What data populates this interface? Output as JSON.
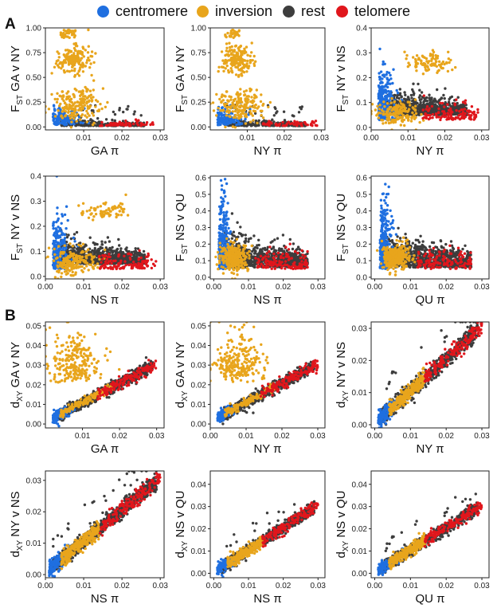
{
  "legend": {
    "items": [
      {
        "label": "centromere",
        "color": "#1f6fe0"
      },
      {
        "label": "inversion",
        "color": "#e8a51c"
      },
      {
        "label": "rest",
        "color": "#3d3d3d"
      },
      {
        "label": "telomere",
        "color": "#e0161c"
      }
    ]
  },
  "panel_letters": {
    "a": "A",
    "b": "B"
  },
  "chart_data": [
    {
      "type": "scatter",
      "panel": "A",
      "row": 0,
      "col": 0,
      "stat": "F",
      "sub": "ST",
      "pair": "GA v NY",
      "xlabel": "GA π",
      "xlim": [
        0,
        0.031
      ],
      "ylim": [
        -0.03,
        1.0
      ],
      "xticks": [
        0.01,
        0.02,
        0.03
      ],
      "yticks": [
        0.0,
        0.25,
        0.5,
        0.75,
        1.0
      ],
      "ytick_labels": [
        "0.00",
        "0.25",
        "0.50",
        "0.75",
        "1.00"
      ],
      "profile": "fstA",
      "series_counts": {
        "centromere": 140,
        "inversion": 400,
        "rest": 300,
        "telomere": 60
      }
    },
    {
      "type": "scatter",
      "panel": "A",
      "row": 0,
      "col": 1,
      "stat": "F",
      "sub": "ST",
      "pair": "GA v NY",
      "xlabel": "NY π",
      "xlim": [
        0,
        0.031
      ],
      "ylim": [
        -0.03,
        1.0
      ],
      "xticks": [
        0.01,
        0.02,
        0.03
      ],
      "yticks": [
        0.0,
        0.25,
        0.5,
        0.75,
        1.0
      ],
      "ytick_labels": [
        "0.00",
        "0.25",
        "0.50",
        "0.75",
        "1.00"
      ],
      "profile": "fstB",
      "series_counts": {
        "centromere": 140,
        "inversion": 400,
        "rest": 300,
        "telomere": 60
      }
    },
    {
      "type": "scatter",
      "panel": "A",
      "row": 0,
      "col": 2,
      "stat": "F",
      "sub": "ST",
      "pair": "NY v NS",
      "xlabel": "NY π",
      "xlim": [
        0,
        0.032
      ],
      "ylim": [
        -0.01,
        0.4
      ],
      "xticks": [
        0.0,
        0.01,
        0.02,
        0.03
      ],
      "yticks": [
        0.0,
        0.1,
        0.2,
        0.3,
        0.4
      ],
      "ytick_labels": [
        "0.0",
        "0.1",
        "0.2",
        "0.3",
        "0.4"
      ],
      "profile": "fstC",
      "series_counts": {
        "centromere": 250,
        "inversion": 280,
        "rest": 800,
        "telomere": 120
      }
    },
    {
      "type": "scatter",
      "panel": "A",
      "row": 1,
      "col": 0,
      "stat": "F",
      "sub": "ST",
      "pair": "NY v NS",
      "xlabel": "NS π",
      "xlim": [
        0,
        0.031
      ],
      "ylim": [
        -0.01,
        0.4
      ],
      "xticks": [
        0.0,
        0.01,
        0.02,
        0.03
      ],
      "yticks": [
        0.0,
        0.1,
        0.2,
        0.3,
        0.4
      ],
      "ytick_labels": [
        "0.0",
        "0.1",
        "0.2",
        "0.3",
        "0.4"
      ],
      "profile": "fstD",
      "series_counts": {
        "centromere": 250,
        "inversion": 280,
        "rest": 800,
        "telomere": 120
      }
    },
    {
      "type": "scatter",
      "panel": "A",
      "row": 1,
      "col": 1,
      "stat": "F",
      "sub": "ST",
      "pair": "NS v QU",
      "xlabel": "NS π",
      "xlim": [
        -0.001,
        0.032
      ],
      "ylim": [
        -0.01,
        0.61
      ],
      "xticks": [
        0.0,
        0.01,
        0.02,
        0.03
      ],
      "yticks": [
        0.0,
        0.1,
        0.2,
        0.3,
        0.4,
        0.5,
        0.6
      ],
      "ytick_labels": [
        "0.0",
        "0.1",
        "0.2",
        "0.3",
        "0.4",
        "0.5",
        "0.6"
      ],
      "profile": "fstE",
      "series_counts": {
        "centromere": 300,
        "inversion": 300,
        "rest": 900,
        "telomere": 130
      }
    },
    {
      "type": "scatter",
      "panel": "A",
      "row": 1,
      "col": 2,
      "stat": "F",
      "sub": "ST",
      "pair": "NS v QU",
      "xlabel": "QU π",
      "xlim": [
        -0.001,
        0.032
      ],
      "ylim": [
        -0.01,
        0.61
      ],
      "xticks": [
        0.0,
        0.01,
        0.02,
        0.03
      ],
      "yticks": [
        0.0,
        0.1,
        0.2,
        0.3,
        0.4,
        0.5,
        0.6
      ],
      "ytick_labels": [
        "0.0",
        "0.1",
        "0.2",
        "0.3",
        "0.4",
        "0.5",
        "0.6"
      ],
      "profile": "fstF",
      "series_counts": {
        "centromere": 300,
        "inversion": 300,
        "rest": 900,
        "telomere": 130
      }
    },
    {
      "type": "scatter",
      "panel": "B",
      "row": 2,
      "col": 0,
      "stat": "d",
      "sub": "XY",
      "pair": "GA v NY",
      "xlabel": "GA π",
      "xlim": [
        0,
        0.032
      ],
      "ylim": [
        -0.002,
        0.052
      ],
      "xticks": [
        0.01,
        0.02,
        0.03
      ],
      "yticks": [
        0.0,
        0.01,
        0.02,
        0.03,
        0.04,
        0.05
      ],
      "ytick_labels": [
        "0.00",
        "0.01",
        "0.02",
        "0.03",
        "0.04",
        "0.05"
      ],
      "profile": "dxyA",
      "series_counts": {
        "centromere": 120,
        "inversion": 400,
        "rest": 700,
        "telomere": 150
      }
    },
    {
      "type": "scatter",
      "panel": "B",
      "row": 2,
      "col": 1,
      "stat": "d",
      "sub": "XY",
      "pair": "GA v NY",
      "xlabel": "NY π",
      "xlim": [
        0,
        0.032
      ],
      "ylim": [
        -0.002,
        0.052
      ],
      "xticks": [
        0.0,
        0.01,
        0.02,
        0.03
      ],
      "yticks": [
        0.0,
        0.01,
        0.02,
        0.03,
        0.04,
        0.05
      ],
      "ytick_labels": [
        "0.00",
        "0.01",
        "0.02",
        "0.03",
        "0.04",
        "0.05"
      ],
      "profile": "dxyB",
      "series_counts": {
        "centromere": 120,
        "inversion": 400,
        "rest": 700,
        "telomere": 150
      }
    },
    {
      "type": "scatter",
      "panel": "B",
      "row": 2,
      "col": 2,
      "stat": "d",
      "sub": "XY",
      "pair": "NY v NS",
      "xlabel": "NY π",
      "xlim": [
        -0.001,
        0.032
      ],
      "ylim": [
        -0.001,
        0.032
      ],
      "xticks": [
        0.0,
        0.01,
        0.02,
        0.03
      ],
      "yticks": [
        0.0,
        0.01,
        0.02,
        0.03
      ],
      "ytick_labels": [
        "0.00",
        "0.01",
        "0.02",
        "0.03"
      ],
      "profile": "dxyC",
      "series_counts": {
        "centromere": 120,
        "inversion": 250,
        "rest": 700,
        "telomere": 170
      }
    },
    {
      "type": "scatter",
      "panel": "B",
      "row": 3,
      "col": 0,
      "stat": "d",
      "sub": "XY",
      "pair": "NY v NS",
      "xlabel": "NS π",
      "xlim": [
        0,
        0.031
      ],
      "ylim": [
        -0.001,
        0.033
      ],
      "xticks": [
        0.0,
        0.01,
        0.02,
        0.03
      ],
      "yticks": [
        0.0,
        0.01,
        0.02,
        0.03
      ],
      "ytick_labels": [
        "0.00",
        "0.01",
        "0.02",
        "0.03"
      ],
      "profile": "dxyD",
      "series_counts": {
        "centromere": 120,
        "inversion": 300,
        "rest": 800,
        "telomere": 180
      }
    },
    {
      "type": "scatter",
      "panel": "B",
      "row": 3,
      "col": 1,
      "stat": "d",
      "sub": "XY",
      "pair": "NS v QU",
      "xlabel": "NS π",
      "xlim": [
        -0.001,
        0.032
      ],
      "ylim": [
        -0.002,
        0.046
      ],
      "xticks": [
        0.0,
        0.01,
        0.02,
        0.03
      ],
      "yticks": [
        0.0,
        0.01,
        0.02,
        0.03,
        0.04
      ],
      "ytick_labels": [
        "0.00",
        "0.01",
        "0.02",
        "0.03",
        "0.04"
      ],
      "profile": "dxyE",
      "series_counts": {
        "centromere": 120,
        "inversion": 260,
        "rest": 750,
        "telomere": 160
      }
    },
    {
      "type": "scatter",
      "panel": "B",
      "row": 3,
      "col": 2,
      "stat": "d",
      "sub": "XY",
      "pair": "NS v QU",
      "xlabel": "QU π",
      "xlim": [
        -0.001,
        0.032
      ],
      "ylim": [
        -0.002,
        0.046
      ],
      "xticks": [
        0.0,
        0.01,
        0.02,
        0.03
      ],
      "yticks": [
        0.0,
        0.01,
        0.02,
        0.03,
        0.04
      ],
      "ytick_labels": [
        "0.00",
        "0.01",
        "0.02",
        "0.03",
        "0.04"
      ],
      "profile": "dxyF",
      "series_counts": {
        "centromere": 120,
        "inversion": 260,
        "rest": 750,
        "telomere": 160
      }
    }
  ]
}
